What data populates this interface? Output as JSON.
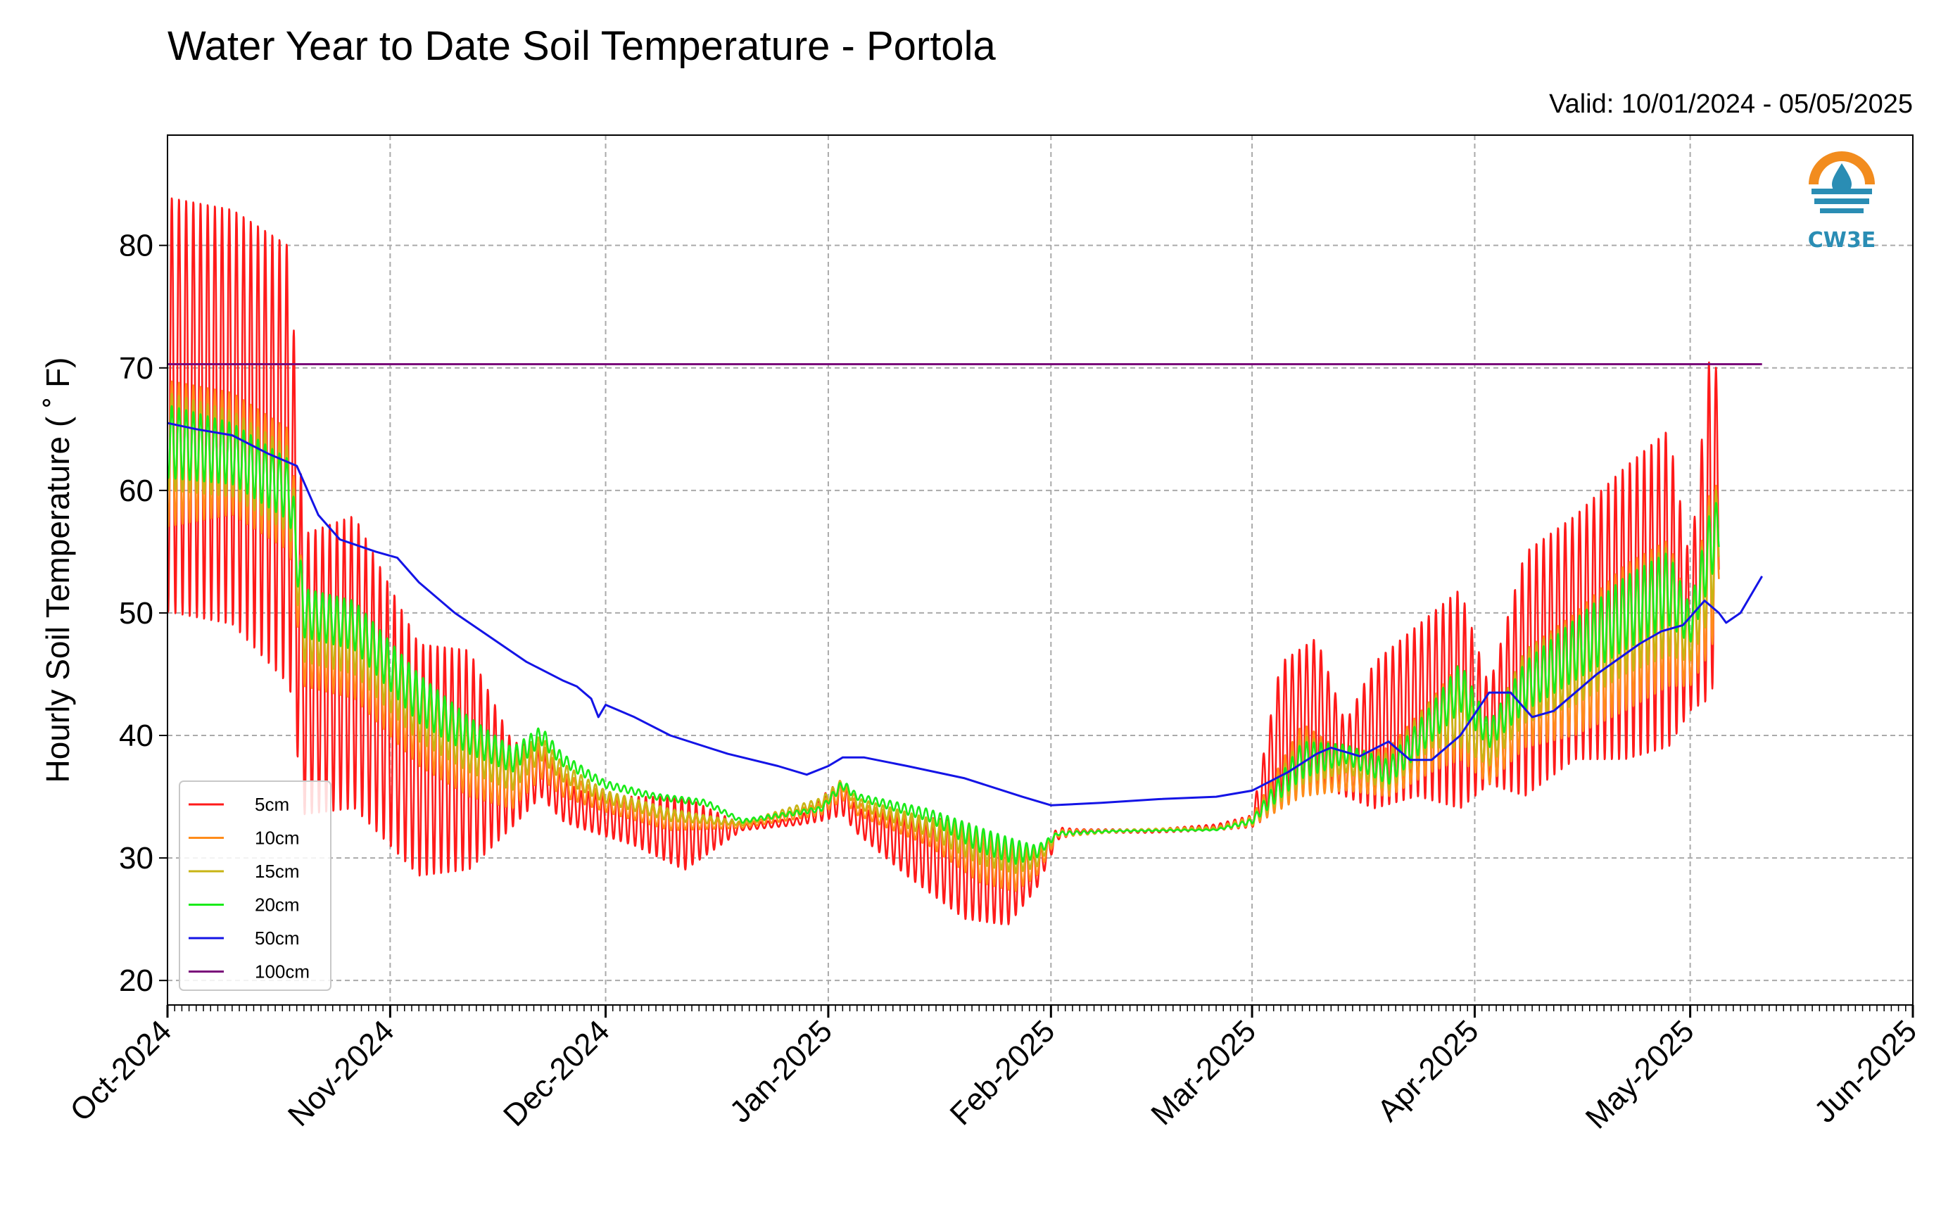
{
  "chart_data": {
    "type": "line",
    "title": "Water Year to Date Soil Temperature - Portola",
    "subtitle": "Valid: 10/01/2024 - 05/05/2025",
    "ylabel": "Hourly Soil Temperature ( ˚ F)",
    "xlabel": "",
    "ylim": [
      18,
      89
    ],
    "yticks": [
      20,
      30,
      40,
      50,
      60,
      70,
      80
    ],
    "xlim": [
      "2024-10-01",
      "2025-06-01"
    ],
    "xticks": [
      {
        "date": "2024-10-01",
        "label": "Oct-2024"
      },
      {
        "date": "2024-11-01",
        "label": "Nov-2024"
      },
      {
        "date": "2024-12-01",
        "label": "Dec-2024"
      },
      {
        "date": "2025-01-01",
        "label": "Jan-2025"
      },
      {
        "date": "2025-02-01",
        "label": "Feb-2025"
      },
      {
        "date": "2025-03-01",
        "label": "Mar-2025"
      },
      {
        "date": "2025-04-01",
        "label": "Apr-2025"
      },
      {
        "date": "2025-05-01",
        "label": "May-2025"
      },
      {
        "date": "2025-06-01",
        "label": "Jun-2025"
      }
    ],
    "grid": true,
    "legend_position": "lower-left",
    "series": [
      {
        "name": "5cm",
        "color": "#ff1a1a",
        "diurnal": true,
        "points": [
          [
            "2024-10-01",
            67,
            34
          ],
          [
            "2024-10-10",
            66,
            34
          ],
          [
            "2024-10-18",
            62,
            36
          ],
          [
            "2024-10-20",
            45,
            23
          ],
          [
            "2024-10-27",
            46,
            24
          ],
          [
            "2024-11-05",
            38,
            19
          ],
          [
            "2024-11-12",
            38,
            18
          ],
          [
            "2024-11-18",
            36,
            7
          ],
          [
            "2024-11-22",
            37,
            4
          ],
          [
            "2024-11-25",
            35,
            4
          ],
          [
            "2024-11-27",
            34,
            3
          ],
          [
            "2024-12-05",
            33,
            4
          ],
          [
            "2024-12-12",
            32,
            6
          ],
          [
            "2024-12-20",
            32.5,
            0.5
          ],
          [
            "2024-12-28",
            33,
            0.6
          ],
          [
            "2024-12-31",
            34,
            2
          ],
          [
            "2025-01-03",
            35,
            3
          ],
          [
            "2025-01-05",
            33,
            2
          ],
          [
            "2025-01-12",
            31,
            5
          ],
          [
            "2025-01-20",
            29,
            8
          ],
          [
            "2025-01-26",
            28,
            7
          ],
          [
            "2025-01-30",
            29,
            3
          ],
          [
            "2025-02-02",
            32,
            1
          ],
          [
            "2025-02-05",
            32.2,
            0.3
          ],
          [
            "2025-02-15",
            32.2,
            0.3
          ],
          [
            "2025-02-24",
            32.5,
            0.5
          ],
          [
            "2025-03-01",
            33,
            1
          ],
          [
            "2025-03-05",
            40,
            12
          ],
          [
            "2025-03-10",
            42,
            12
          ],
          [
            "2025-03-14",
            38,
            6
          ],
          [
            "2025-03-18",
            40,
            12
          ],
          [
            "2025-03-24",
            42,
            14
          ],
          [
            "2025-03-30",
            43,
            18
          ],
          [
            "2025-04-03",
            40,
            8
          ],
          [
            "2025-04-08",
            45,
            20
          ],
          [
            "2025-04-15",
            48,
            20
          ],
          [
            "2025-04-22",
            50,
            24
          ],
          [
            "2025-04-28",
            52,
            26
          ],
          [
            "2025-05-01",
            48,
            12
          ],
          [
            "2025-05-04",
            58,
            30
          ],
          [
            "2025-05-05",
            60,
            16
          ]
        ]
      },
      {
        "name": "10cm",
        "color": "#ff8c1a",
        "diurnal": true,
        "points": [
          [
            "2024-10-01",
            63,
            12
          ],
          [
            "2024-10-10",
            63,
            10
          ],
          [
            "2024-10-18",
            60,
            10
          ],
          [
            "2024-10-20",
            48,
            8
          ],
          [
            "2024-10-27",
            47,
            8
          ],
          [
            "2024-11-05",
            41,
            7
          ],
          [
            "2024-11-12",
            38,
            6
          ],
          [
            "2024-11-18",
            36,
            4
          ],
          [
            "2024-11-22",
            38,
            3
          ],
          [
            "2024-11-25",
            36,
            2
          ],
          [
            "2024-12-01",
            34.5,
            1.5
          ],
          [
            "2024-12-10",
            33,
            1.5
          ],
          [
            "2024-12-20",
            32.6,
            0.3
          ],
          [
            "2024-12-31",
            34,
            1
          ],
          [
            "2025-01-03",
            35.5,
            1.5
          ],
          [
            "2025-01-05",
            34,
            1
          ],
          [
            "2025-01-15",
            32,
            2
          ],
          [
            "2025-01-22",
            30,
            4
          ],
          [
            "2025-01-27",
            29,
            3.5
          ],
          [
            "2025-01-30",
            29.5,
            2
          ],
          [
            "2025-02-02",
            32,
            0.6
          ],
          [
            "2025-02-10",
            32.2,
            0.2
          ],
          [
            "2025-02-24",
            32.4,
            0.3
          ],
          [
            "2025-03-01",
            33,
            0.8
          ],
          [
            "2025-03-08",
            38,
            6
          ],
          [
            "2025-03-14",
            37,
            3
          ],
          [
            "2025-03-20",
            37,
            4
          ],
          [
            "2025-03-26",
            40,
            6
          ],
          [
            "2025-03-30",
            42,
            8
          ],
          [
            "2025-04-03",
            38,
            4
          ],
          [
            "2025-04-08",
            43,
            8
          ],
          [
            "2025-04-15",
            45,
            10
          ],
          [
            "2025-04-22",
            48,
            12
          ],
          [
            "2025-04-28",
            50,
            12
          ],
          [
            "2025-05-01",
            47,
            6
          ],
          [
            "2025-05-04",
            54,
            14
          ],
          [
            "2025-05-05",
            56,
            8
          ]
        ]
      },
      {
        "name": "15cm",
        "color": "#c8b414",
        "diurnal": true,
        "points": [
          [
            "2024-10-01",
            64,
            8
          ],
          [
            "2024-10-10",
            63,
            7
          ],
          [
            "2024-10-18",
            60,
            7
          ],
          [
            "2024-10-20",
            49,
            6
          ],
          [
            "2024-10-27",
            48,
            6
          ],
          [
            "2024-11-05",
            42,
            5
          ],
          [
            "2024-11-12",
            39,
            4
          ],
          [
            "2024-11-18",
            37,
            3
          ],
          [
            "2024-11-22",
            39,
            2
          ],
          [
            "2024-11-25",
            37,
            1.5
          ],
          [
            "2024-12-01",
            35,
            1
          ],
          [
            "2024-12-10",
            33.5,
            1
          ],
          [
            "2024-12-20",
            32.8,
            0.3
          ],
          [
            "2024-12-31",
            34.5,
            0.8
          ],
          [
            "2025-01-03",
            36,
            1
          ],
          [
            "2025-01-05",
            34.5,
            0.8
          ],
          [
            "2025-01-15",
            32.5,
            1.5
          ],
          [
            "2025-01-22",
            31,
            3
          ],
          [
            "2025-01-27",
            30,
            2.5
          ],
          [
            "2025-01-30",
            30,
            1.5
          ],
          [
            "2025-02-02",
            32,
            0.4
          ],
          [
            "2025-02-10",
            32.2,
            0.2
          ],
          [
            "2025-02-24",
            32.4,
            0.2
          ],
          [
            "2025-03-01",
            33,
            0.6
          ],
          [
            "2025-03-08",
            38,
            4
          ],
          [
            "2025-03-14",
            38,
            2
          ],
          [
            "2025-03-20",
            37,
            3
          ],
          [
            "2025-03-26",
            41,
            4
          ],
          [
            "2025-03-30",
            42,
            6
          ],
          [
            "2025-04-03",
            39,
            3
          ],
          [
            "2025-04-08",
            44,
            6
          ],
          [
            "2025-04-15",
            46,
            7
          ],
          [
            "2025-04-22",
            49,
            8
          ],
          [
            "2025-04-28",
            51,
            9
          ],
          [
            "2025-05-01",
            48,
            4
          ],
          [
            "2025-05-04",
            55,
            10
          ],
          [
            "2025-05-05",
            57,
            6
          ]
        ]
      },
      {
        "name": "20cm",
        "color": "#1aeb1a",
        "diurnal": true,
        "points": [
          [
            "2024-10-01",
            64,
            6
          ],
          [
            "2024-10-10",
            63,
            5
          ],
          [
            "2024-10-18",
            60,
            5
          ],
          [
            "2024-10-20",
            50,
            4
          ],
          [
            "2024-10-27",
            49,
            4
          ],
          [
            "2024-11-05",
            43,
            4
          ],
          [
            "2024-11-12",
            40,
            3
          ],
          [
            "2024-11-18",
            38,
            2
          ],
          [
            "2024-11-22",
            40,
            1.5
          ],
          [
            "2024-11-25",
            38,
            1
          ],
          [
            "2024-12-01",
            36,
            0.6
          ],
          [
            "2024-12-08",
            35,
            0.5
          ],
          [
            "2024-12-15",
            34.5,
            0.5
          ],
          [
            "2024-12-20",
            33,
            0.3
          ],
          [
            "2024-12-31",
            34,
            0.4
          ],
          [
            "2025-01-03",
            36,
            0.8
          ],
          [
            "2025-01-05",
            35,
            0.5
          ],
          [
            "2025-01-15",
            33.5,
            1
          ],
          [
            "2025-01-22",
            31.5,
            2
          ],
          [
            "2025-01-27",
            30.5,
            2
          ],
          [
            "2025-01-30",
            30.5,
            1
          ],
          [
            "2025-02-02",
            32,
            0.3
          ],
          [
            "2025-02-10",
            32.2,
            0.1
          ],
          [
            "2025-02-24",
            32.3,
            0.1
          ],
          [
            "2025-03-01",
            33,
            0.4
          ],
          [
            "2025-03-08",
            38,
            3
          ],
          [
            "2025-03-14",
            38.5,
            1.5
          ],
          [
            "2025-03-20",
            37,
            2
          ],
          [
            "2025-03-26",
            41,
            3
          ],
          [
            "2025-03-30",
            44,
            4
          ],
          [
            "2025-04-03",
            40,
            2
          ],
          [
            "2025-04-08",
            44,
            4
          ],
          [
            "2025-04-15",
            47,
            5
          ],
          [
            "2025-04-22",
            50,
            6
          ],
          [
            "2025-04-28",
            52,
            6
          ],
          [
            "2025-05-01",
            49,
            3
          ],
          [
            "2025-05-04",
            56,
            6
          ],
          [
            "2025-05-05",
            57,
            4
          ]
        ]
      },
      {
        "name": "50cm",
        "color": "#1414e6",
        "diurnal": false,
        "points": [
          [
            "2024-10-01",
            65.5
          ],
          [
            "2024-10-05",
            65
          ],
          [
            "2024-10-10",
            64.5
          ],
          [
            "2024-10-15",
            63
          ],
          [
            "2024-10-19",
            62
          ],
          [
            "2024-10-22",
            58
          ],
          [
            "2024-10-25",
            56
          ],
          [
            "2024-10-30",
            55
          ],
          [
            "2024-11-02",
            54.5
          ],
          [
            "2024-11-05",
            52.5
          ],
          [
            "2024-11-10",
            50
          ],
          [
            "2024-11-15",
            48
          ],
          [
            "2024-11-20",
            46
          ],
          [
            "2024-11-25",
            44.5
          ],
          [
            "2024-11-27",
            44
          ],
          [
            "2024-11-29",
            43
          ],
          [
            "2024-11-30",
            41.5
          ],
          [
            "2024-12-01",
            42.5
          ],
          [
            "2024-12-05",
            41.5
          ],
          [
            "2024-12-10",
            40
          ],
          [
            "2024-12-18",
            38.5
          ],
          [
            "2024-12-25",
            37.5
          ],
          [
            "2024-12-29",
            36.8
          ],
          [
            "2025-01-01",
            37.5
          ],
          [
            "2025-01-03",
            38.2
          ],
          [
            "2025-01-06",
            38.2
          ],
          [
            "2025-01-12",
            37.5
          ],
          [
            "2025-01-20",
            36.5
          ],
          [
            "2025-01-28",
            35
          ],
          [
            "2025-02-01",
            34.3
          ],
          [
            "2025-02-08",
            34.5
          ],
          [
            "2025-02-16",
            34.8
          ],
          [
            "2025-02-24",
            35
          ],
          [
            "2025-03-01",
            35.5
          ],
          [
            "2025-03-06",
            37
          ],
          [
            "2025-03-10",
            38.5
          ],
          [
            "2025-03-12",
            39
          ],
          [
            "2025-03-16",
            38.3
          ],
          [
            "2025-03-20",
            39.5
          ],
          [
            "2025-03-23",
            38
          ],
          [
            "2025-03-26",
            38
          ],
          [
            "2025-03-30",
            40
          ],
          [
            "2025-04-03",
            43.5
          ],
          [
            "2025-04-06",
            43.5
          ],
          [
            "2025-04-09",
            41.5
          ],
          [
            "2025-04-12",
            42
          ],
          [
            "2025-04-18",
            45
          ],
          [
            "2025-04-24",
            47.5
          ],
          [
            "2025-04-27",
            48.5
          ],
          [
            "2025-04-30",
            49
          ],
          [
            "2025-05-03",
            51
          ],
          [
            "2025-05-05",
            50
          ],
          [
            "2025-05-06",
            49.2
          ],
          [
            "2025-05-08",
            50
          ],
          [
            "2025-05-11",
            53
          ]
        ]
      },
      {
        "name": "100cm",
        "color": "#7a0a7a",
        "diurnal": false,
        "points": [
          [
            "2024-10-01",
            70.3
          ],
          [
            "2025-05-11",
            70.3
          ]
        ]
      }
    ]
  },
  "logo": {
    "text": "CW3E"
  }
}
